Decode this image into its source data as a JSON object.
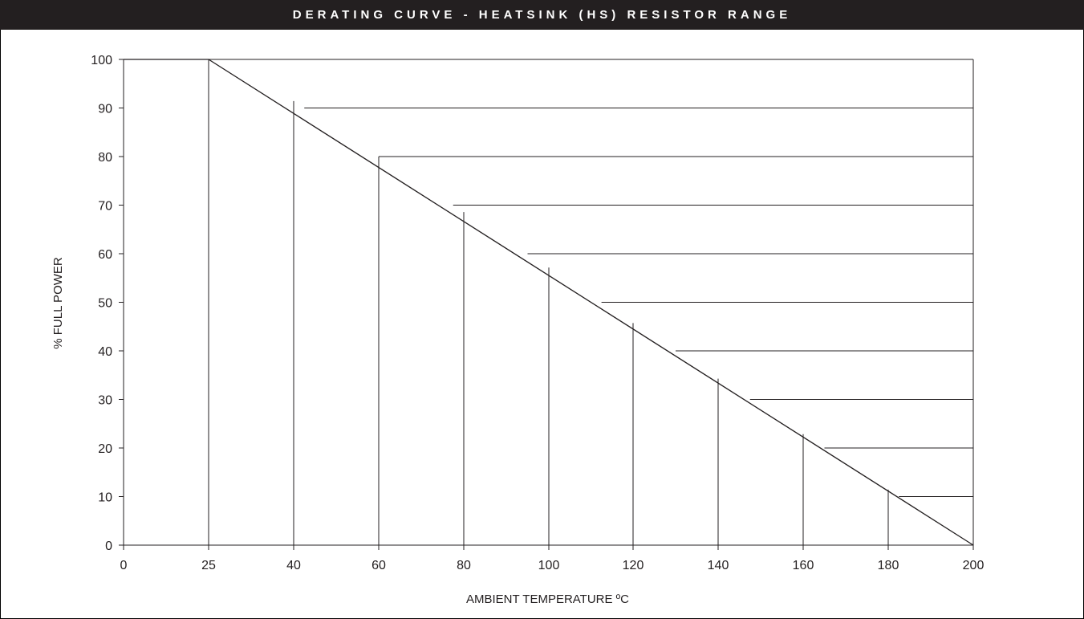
{
  "chart_data": {
    "type": "line",
    "title": "DERATING CURVE - HEATSINK (HS) RESISTOR RANGE",
    "xlabel": "AMBIENT TEMPERATURE ºC",
    "ylabel": "% FULL POWER",
    "x_ticks": [
      0,
      25,
      40,
      60,
      80,
      100,
      120,
      140,
      160,
      180,
      200
    ],
    "y_ticks": [
      0,
      10,
      20,
      30,
      40,
      50,
      60,
      70,
      80,
      90,
      100
    ],
    "xlim": [
      0,
      200
    ],
    "ylim": [
      0,
      100
    ],
    "grid": "staircase (curve-bounded)",
    "series": [
      {
        "x": [
          0,
          25,
          200
        ],
        "y": [
          100,
          100,
          0
        ]
      }
    ],
    "colors": {
      "line": "#231f20",
      "title_bar": "#231f20",
      "title_text": "#ffffff"
    }
  }
}
